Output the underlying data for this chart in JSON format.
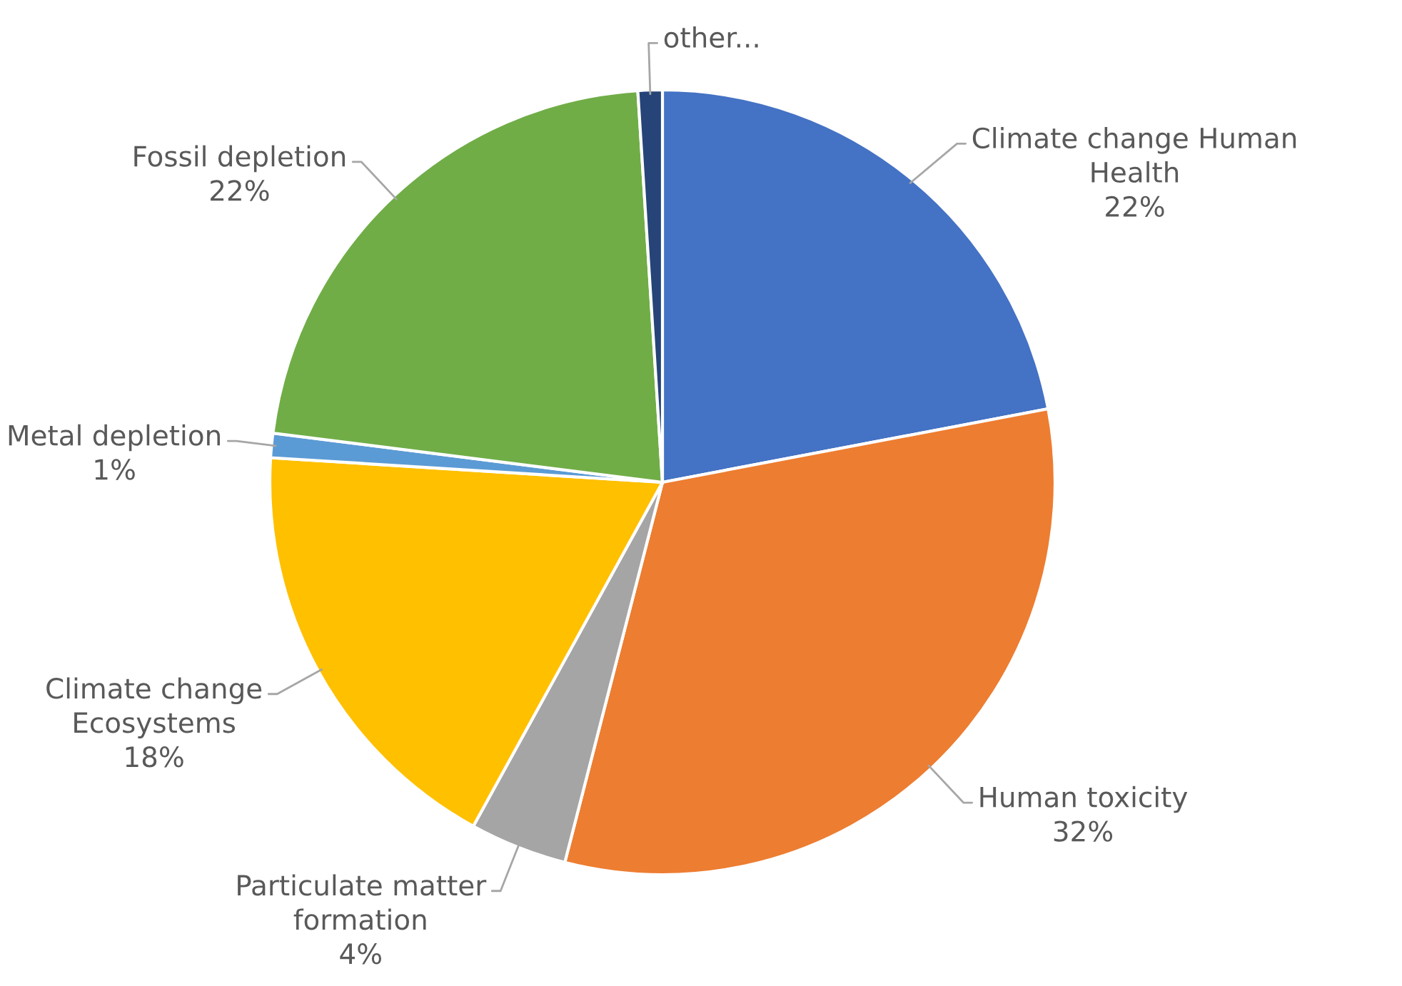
{
  "chart_data": {
    "type": "pie",
    "categories": [
      "Climate change Human\nHealth",
      "Human toxicity",
      "Particulate matter\nformation",
      "Climate change\nEcosystems",
      "Metal depletion",
      "Fossil depletion",
      "other..."
    ],
    "values": [
      22,
      32,
      4,
      18,
      1,
      22,
      1
    ],
    "colors": [
      "#4472c4",
      "#ed7d31",
      "#a5a5a5",
      "#ffc000",
      "#5b9bd5",
      "#70ad47",
      "#264478"
    ],
    "value_labels": [
      "22%",
      "32%",
      "4%",
      "18%",
      "1%",
      "22%",
      null
    ]
  }
}
